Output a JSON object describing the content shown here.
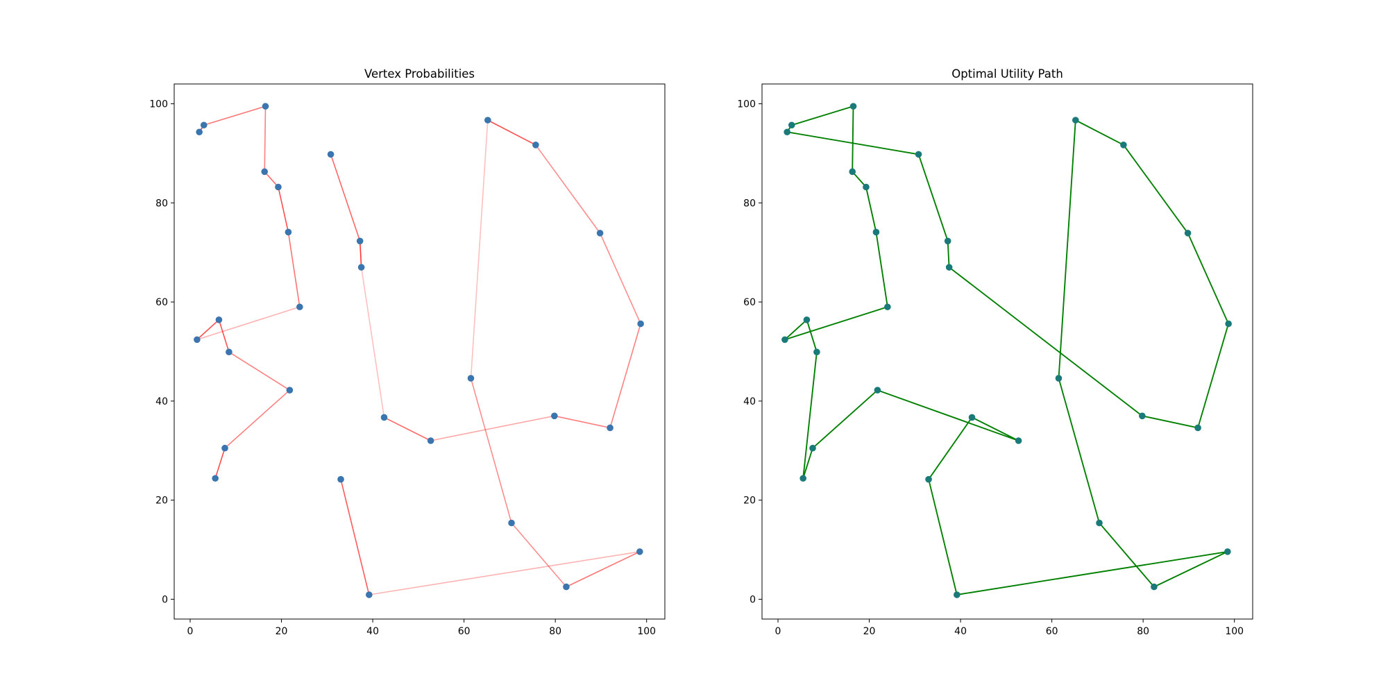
{
  "chart_data": [
    {
      "type": "line",
      "title": "Vertex Probabilities",
      "xlim": [
        -3.5,
        104
      ],
      "ylim": [
        -4,
        104
      ],
      "xticks": [
        0,
        20,
        40,
        60,
        80,
        100
      ],
      "yticks": [
        0,
        20,
        40,
        60,
        80,
        100
      ],
      "grid": false,
      "point_color": "#3b75af",
      "edge_color": "#ff0000",
      "points": [
        [
          2.0,
          94.3
        ],
        [
          3.0,
          95.7
        ],
        [
          16.5,
          99.5
        ],
        [
          16.3,
          86.3
        ],
        [
          19.3,
          83.2
        ],
        [
          21.5,
          74.1
        ],
        [
          24.0,
          59.0
        ],
        [
          30.8,
          89.8
        ],
        [
          37.2,
          72.3
        ],
        [
          37.5,
          67.0
        ],
        [
          6.3,
          56.4
        ],
        [
          1.5,
          52.4
        ],
        [
          8.5,
          49.9
        ],
        [
          21.8,
          42.2
        ],
        [
          7.6,
          30.5
        ],
        [
          5.5,
          24.4
        ],
        [
          42.5,
          36.7
        ],
        [
          52.7,
          32.0
        ],
        [
          33.0,
          24.2
        ],
        [
          39.2,
          0.9
        ],
        [
          65.2,
          96.7
        ],
        [
          75.7,
          91.7
        ],
        [
          89.8,
          73.9
        ],
        [
          98.7,
          55.6
        ],
        [
          92.0,
          34.6
        ],
        [
          79.8,
          37.0
        ],
        [
          61.5,
          44.6
        ],
        [
          70.4,
          15.4
        ],
        [
          82.4,
          2.5
        ],
        [
          98.5,
          9.6
        ]
      ],
      "edges": [
        {
          "from": [
            2.0,
            94.3
          ],
          "to": [
            3.0,
            95.7
          ],
          "p": 0.8
        },
        {
          "from": [
            3.0,
            95.7
          ],
          "to": [
            16.5,
            99.5
          ],
          "p": 0.55
        },
        {
          "from": [
            16.5,
            99.5
          ],
          "to": [
            16.3,
            86.3
          ],
          "p": 0.5
        },
        {
          "from": [
            16.3,
            86.3
          ],
          "to": [
            19.3,
            83.2
          ],
          "p": 0.6
        },
        {
          "from": [
            19.3,
            83.2
          ],
          "to": [
            21.5,
            74.1
          ],
          "p": 0.7
        },
        {
          "from": [
            21.5,
            74.1
          ],
          "to": [
            24.0,
            59.0
          ],
          "p": 0.55
        },
        {
          "from": [
            24.0,
            59.0
          ],
          "to": [
            1.5,
            52.4
          ],
          "p": 0.3
        },
        {
          "from": [
            1.5,
            52.4
          ],
          "to": [
            6.3,
            56.4
          ],
          "p": 0.7
        },
        {
          "from": [
            6.3,
            56.4
          ],
          "to": [
            8.5,
            49.9
          ],
          "p": 0.7
        },
        {
          "from": [
            8.5,
            49.9
          ],
          "to": [
            21.8,
            42.2
          ],
          "p": 0.5
        },
        {
          "from": [
            21.8,
            42.2
          ],
          "to": [
            7.6,
            30.5
          ],
          "p": 0.5
        },
        {
          "from": [
            7.6,
            30.5
          ],
          "to": [
            5.5,
            24.4
          ],
          "p": 0.7
        },
        {
          "from": [
            30.8,
            89.8
          ],
          "to": [
            37.2,
            72.3
          ],
          "p": 0.6
        },
        {
          "from": [
            37.2,
            72.3
          ],
          "to": [
            37.5,
            67.0
          ],
          "p": 0.8
        },
        {
          "from": [
            37.5,
            67.0
          ],
          "to": [
            42.5,
            36.7
          ],
          "p": 0.25
        },
        {
          "from": [
            42.5,
            36.7
          ],
          "to": [
            52.7,
            32.0
          ],
          "p": 0.6
        },
        {
          "from": [
            52.7,
            32.0
          ],
          "to": [
            79.8,
            37.0
          ],
          "p": 0.35
        },
        {
          "from": [
            79.8,
            37.0
          ],
          "to": [
            92.0,
            34.6
          ],
          "p": 0.5
        },
        {
          "from": [
            92.0,
            34.6
          ],
          "to": [
            98.7,
            55.6
          ],
          "p": 0.5
        },
        {
          "from": [
            98.7,
            55.6
          ],
          "to": [
            89.8,
            73.9
          ],
          "p": 0.45
        },
        {
          "from": [
            89.8,
            73.9
          ],
          "to": [
            75.7,
            91.7
          ],
          "p": 0.45
        },
        {
          "from": [
            75.7,
            91.7
          ],
          "to": [
            65.2,
            96.7
          ],
          "p": 0.7
        },
        {
          "from": [
            65.2,
            96.7
          ],
          "to": [
            61.5,
            44.6
          ],
          "p": 0.25
        },
        {
          "from": [
            61.5,
            44.6
          ],
          "to": [
            70.4,
            15.4
          ],
          "p": 0.45
        },
        {
          "from": [
            70.4,
            15.4
          ],
          "to": [
            82.4,
            2.5
          ],
          "p": 0.45
        },
        {
          "from": [
            82.4,
            2.5
          ],
          "to": [
            98.5,
            9.6
          ],
          "p": 0.55
        },
        {
          "from": [
            98.5,
            9.6
          ],
          "to": [
            39.2,
            0.9
          ],
          "p": 0.3
        },
        {
          "from": [
            33.0,
            24.2
          ],
          "to": [
            39.2,
            0.9
          ],
          "p": 0.65
        }
      ]
    },
    {
      "type": "line",
      "title": "Optimal Utility Path",
      "xlim": [
        -3.5,
        104
      ],
      "ylim": [
        -4,
        104
      ],
      "xticks": [
        0,
        20,
        40,
        60,
        80,
        100
      ],
      "yticks": [
        0,
        20,
        40,
        60,
        80,
        100
      ],
      "grid": false,
      "point_color": "#1a7a7a",
      "line_color": "#008000",
      "path": [
        [
          2.0,
          94.3
        ],
        [
          3.0,
          95.7
        ],
        [
          16.5,
          99.5
        ],
        [
          16.3,
          86.3
        ],
        [
          19.3,
          83.2
        ],
        [
          21.5,
          74.1
        ],
        [
          24.0,
          59.0
        ],
        [
          1.5,
          52.4
        ],
        [
          6.3,
          56.4
        ],
        [
          8.5,
          49.9
        ],
        [
          5.5,
          24.4
        ],
        [
          7.6,
          30.5
        ],
        [
          21.8,
          42.2
        ],
        [
          52.7,
          32.0
        ],
        [
          42.5,
          36.7
        ],
        [
          33.0,
          24.2
        ],
        [
          39.2,
          0.9
        ],
        [
          98.5,
          9.6
        ],
        [
          82.4,
          2.5
        ],
        [
          70.4,
          15.4
        ],
        [
          61.5,
          44.6
        ],
        [
          65.2,
          96.7
        ],
        [
          75.7,
          91.7
        ],
        [
          89.8,
          73.9
        ],
        [
          98.7,
          55.6
        ],
        [
          92.0,
          34.6
        ],
        [
          79.8,
          37.0
        ],
        [
          37.5,
          67.0
        ],
        [
          37.2,
          72.3
        ],
        [
          30.8,
          89.8
        ],
        [
          2.0,
          94.3
        ]
      ]
    }
  ]
}
